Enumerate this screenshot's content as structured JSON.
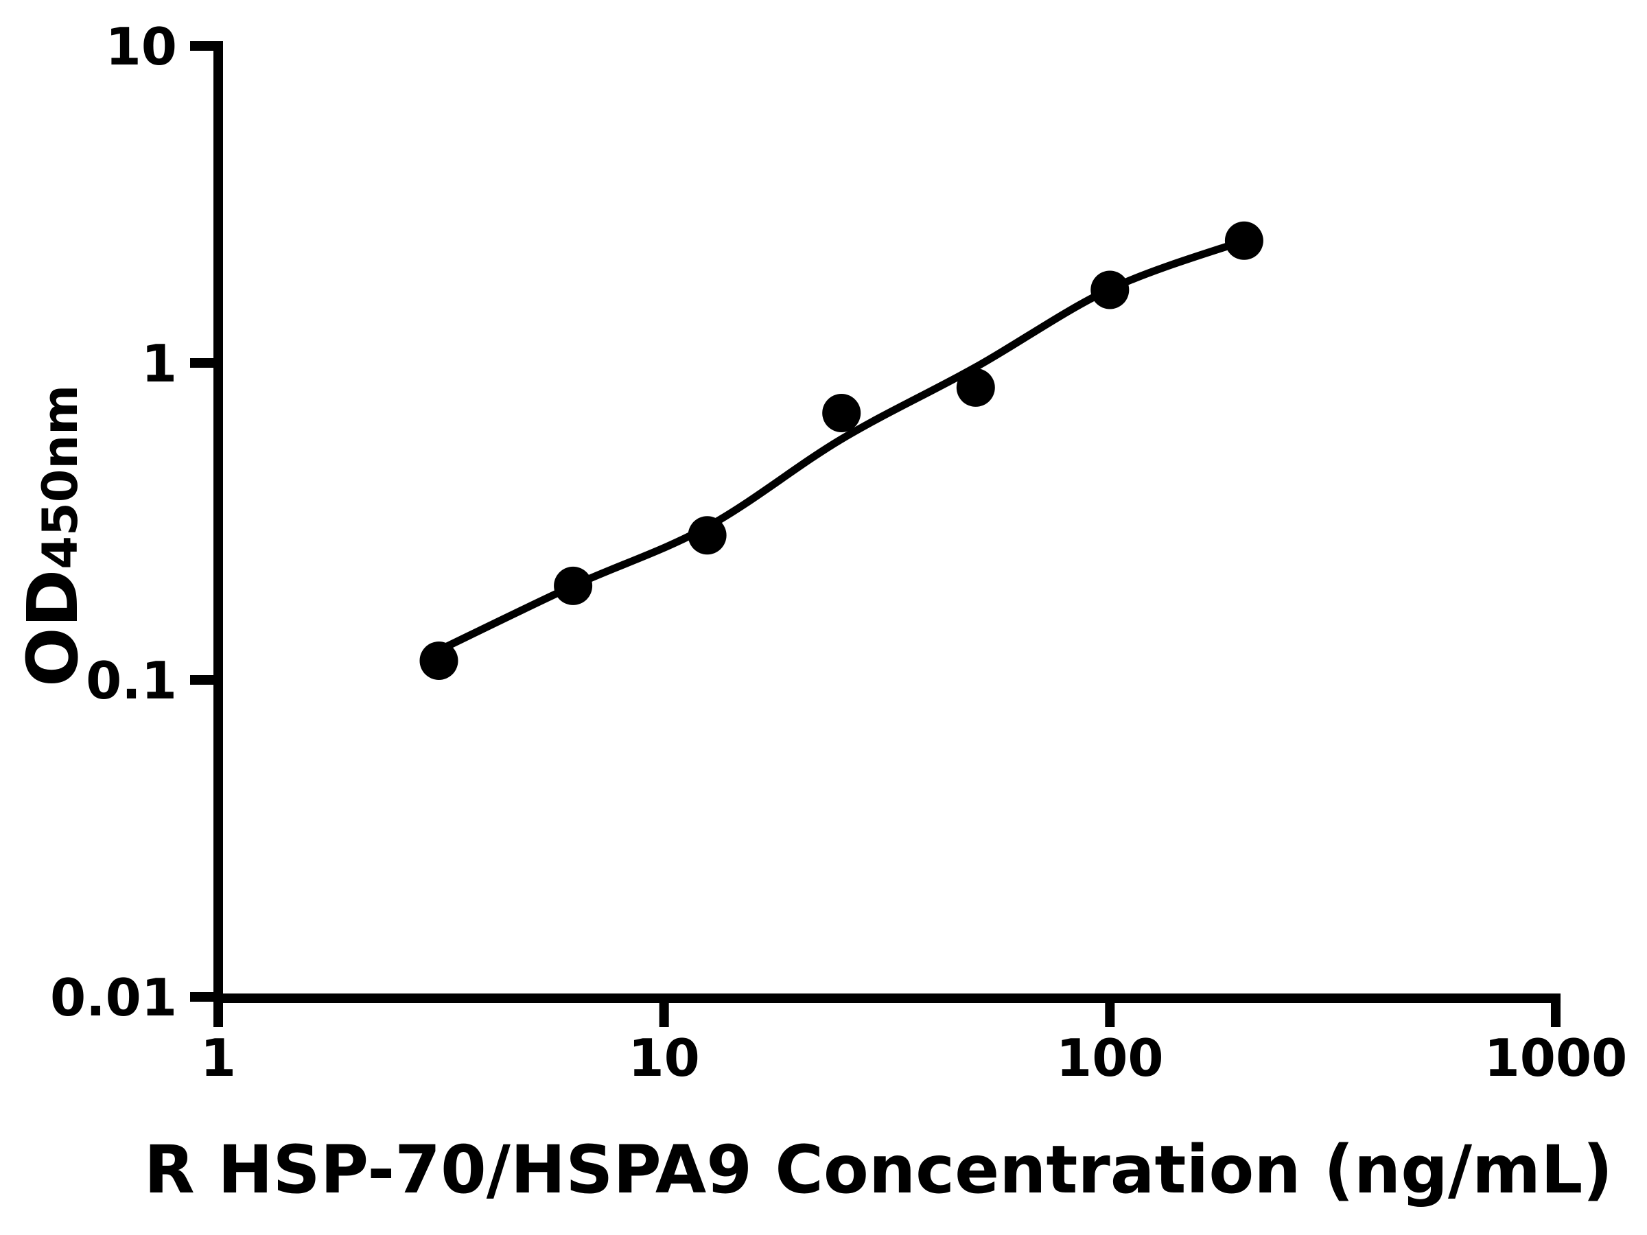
{
  "chart_data": {
    "type": "scatter",
    "title": "",
    "xlabel": "R HSP-70/HSPA9 Concentration (ng/mL)",
    "ylabel": "OD450nm",
    "ylabel_main": "OD",
    "ylabel_sub": "450nm",
    "x_scale": "log",
    "y_scale": "log",
    "xlim": [
      1,
      1000
    ],
    "ylim": [
      0.01,
      10
    ],
    "grid": false,
    "legend": false,
    "axis_color": "#000000",
    "marker_color": "#000000",
    "line_color": "#000000",
    "background_color": "#ffffff",
    "x_ticks": [
      {
        "value": 1,
        "label": "1"
      },
      {
        "value": 10,
        "label": "10"
      },
      {
        "value": 100,
        "label": "100"
      },
      {
        "value": 1000,
        "label": "1000"
      }
    ],
    "y_ticks": [
      {
        "value": 10,
        "label": "10"
      },
      {
        "value": 1,
        "label": "1"
      },
      {
        "value": 0.1,
        "label": "0.1"
      },
      {
        "value": 0.01,
        "label": "0.01"
      }
    ],
    "series": [
      {
        "name": "standard-points",
        "type": "scatter",
        "x": [
          3.125,
          6.25,
          12.5,
          25,
          50,
          100,
          200
        ],
        "y": [
          0.115,
          0.198,
          0.286,
          0.695,
          0.836,
          1.7,
          2.43
        ]
      },
      {
        "name": "fitted-curve",
        "type": "line",
        "x": [
          3.125,
          6.25,
          12.5,
          25,
          50,
          100,
          200
        ],
        "y": [
          0.124,
          0.198,
          0.304,
          0.575,
          0.97,
          1.71,
          2.43
        ]
      }
    ]
  }
}
